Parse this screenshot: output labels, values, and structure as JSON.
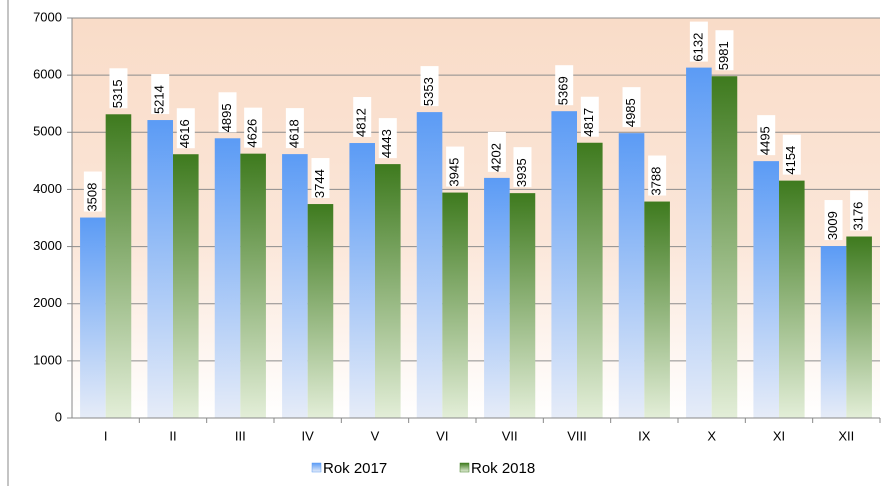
{
  "chart_data": {
    "type": "bar",
    "categories": [
      "I",
      "II",
      "III",
      "IV",
      "V",
      "VI",
      "VII",
      "VIII",
      "IX",
      "X",
      "XI",
      "XII"
    ],
    "series": [
      {
        "name": "Rok 2017",
        "color": "#5b9bf5",
        "values": [
          3508,
          5214,
          4895,
          4618,
          4812,
          5353,
          4202,
          5369,
          4985,
          6132,
          4495,
          3009
        ]
      },
      {
        "name": "Rok 2018",
        "color": "#3e7a1e",
        "values": [
          5315,
          4616,
          4626,
          3744,
          4443,
          3945,
          3935,
          4817,
          3788,
          5981,
          4154,
          3176
        ]
      }
    ],
    "ylim": [
      0,
      7000
    ],
    "yticks": [
      0,
      1000,
      2000,
      3000,
      4000,
      5000,
      6000,
      7000
    ],
    "grid": true,
    "legend": "bottom"
  }
}
